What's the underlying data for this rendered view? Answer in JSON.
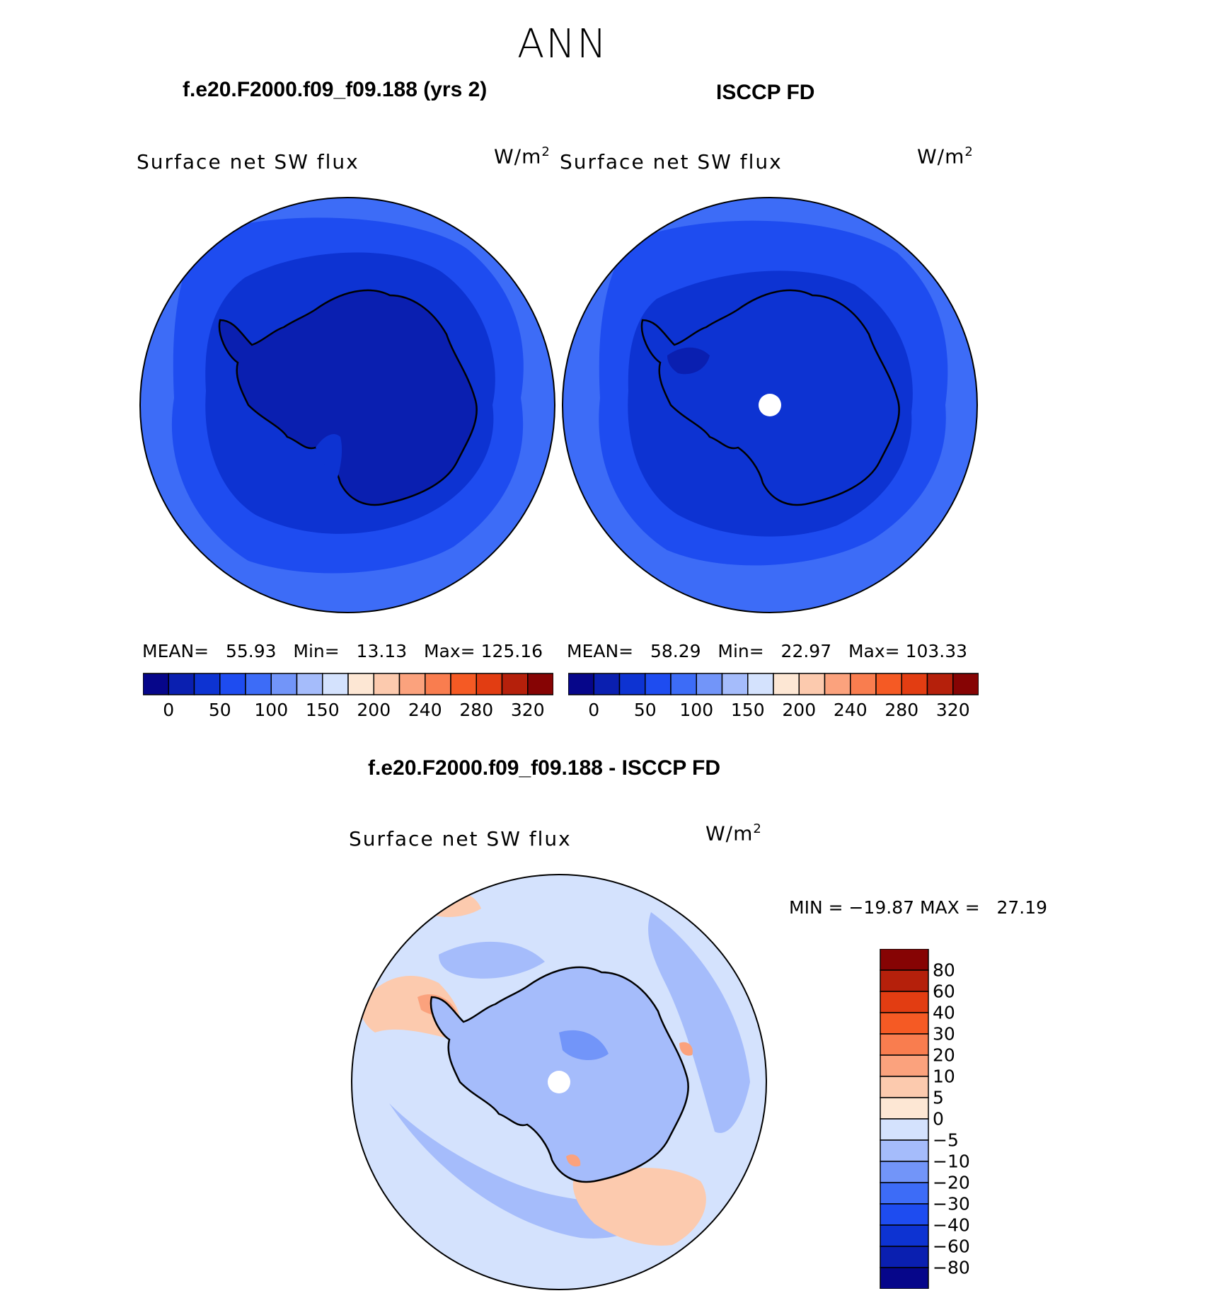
{
  "season": "ANN",
  "units_base": "W/m",
  "units_exp": "2",
  "panel_model": {
    "case_title": "f.e20.F2000.f09_f09.188 (yrs 2)",
    "var_label": "Surface net SW flux",
    "mean_label": "MEAN=",
    "mean_value": "55.93",
    "min_label": "Min=",
    "min_value": "13.13",
    "max_label": "Max=",
    "max_value": "125.16"
  },
  "panel_obs": {
    "case_title": "ISCCP FD",
    "var_label": "Surface net SW flux",
    "mean_label": "MEAN=",
    "mean_value": "58.29",
    "min_label": "Min=",
    "min_value": "22.97",
    "max_label": "Max=",
    "max_value": "103.33"
  },
  "panel_diff": {
    "case_title": "f.e20.F2000.f09_f09.188 - ISCCP FD",
    "var_label": "Surface net SW flux",
    "minmax_text": "MIN = −19.87 MAX =   27.19"
  },
  "colorbar_top": {
    "tick_labels": [
      "0",
      "50",
      "100",
      "150",
      "200",
      "240",
      "280",
      "320"
    ],
    "colors": [
      "#06068a",
      "#0a1fb0",
      "#0d33d2",
      "#1e4cf0",
      "#3d6cf7",
      "#7295f9",
      "#a5bcfb",
      "#d4e2fd",
      "#fde7d4",
      "#fccaae",
      "#fba27d",
      "#f97d4f",
      "#f55a24",
      "#e23d12",
      "#b5200b",
      "#860404"
    ]
  },
  "colorbar_diff": {
    "tick_labels": [
      "80",
      "60",
      "40",
      "30",
      "20",
      "10",
      "5",
      "0",
      "−5",
      "−10",
      "−20",
      "−30",
      "−40",
      "−60",
      "−80"
    ],
    "colors": [
      "#860404",
      "#b5200b",
      "#e23d12",
      "#f55a24",
      "#f97d4f",
      "#fba27d",
      "#fccaae",
      "#fde7d4",
      "#d4e2fd",
      "#a5bcfb",
      "#7295f9",
      "#3d6cf7",
      "#1e4cf0",
      "#0d33d2",
      "#0a1fb0",
      "#06068a"
    ]
  },
  "map_colors": {
    "ocean_outer": "#3d6cf7",
    "ocean_mid": "#1e4cf0",
    "ocean_inner": "#0d33d2",
    "continent_model": "#0a1fb0",
    "continent_obs": "#0d33d2",
    "diff_base": "#d4e2fd",
    "diff_land": "#a5bcfb",
    "diff_neg": "#7295f9",
    "diff_pos": "#fccaae",
    "diff_pos_strong": "#fba27d"
  }
}
